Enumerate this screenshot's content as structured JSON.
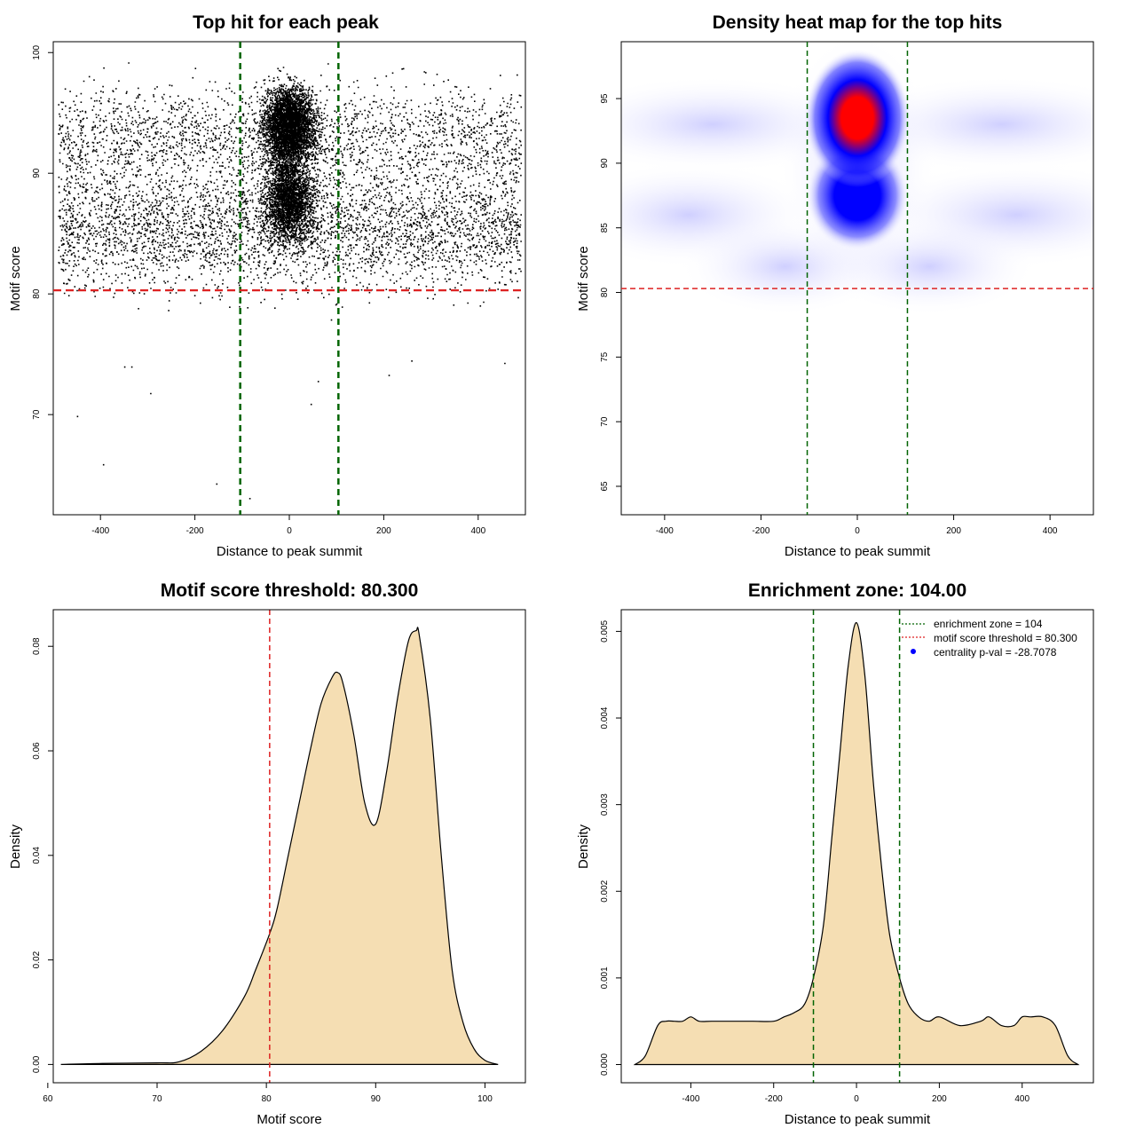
{
  "chart_data": [
    {
      "type": "scatter",
      "title": "Top hit for each peak",
      "xlabel": "Distance to peak summit",
      "ylabel": "Motif score",
      "xlim": [
        -500,
        500
      ],
      "ylim": [
        62,
        100
      ],
      "xticks": [
        "-400",
        "-200",
        "0",
        "200",
        "400"
      ],
      "yticks": [
        "70",
        "80",
        "90",
        "100"
      ],
      "threshold_y": 80.3,
      "zone_x": [
        -104,
        104
      ],
      "threshold_color": "#dd2222",
      "zone_color": "#006400",
      "point_color": "#000000",
      "background_population": {
        "x_range": [
          -490,
          490
        ],
        "centers_y": [
          85.5,
          93
        ],
        "sd_y": [
          3.2,
          3.0
        ]
      },
      "central_population": {
        "x_center": 0,
        "x_sd": 35,
        "centers_y": [
          94,
          88
        ],
        "sd_y": [
          2.0,
          2.3
        ]
      },
      "outliers": [
        {
          "x": -450,
          "y": 69.9
        },
        {
          "x": -395,
          "y": 65.9
        },
        {
          "x": -155,
          "y": 64.3
        },
        {
          "x": -85,
          "y": 63.1
        },
        {
          "x": -295,
          "y": 71.8
        },
        {
          "x": 45,
          "y": 70.9
        },
        {
          "x": -350,
          "y": 74.0
        },
        {
          "x": -335,
          "y": 74.0
        },
        {
          "x": 60,
          "y": 72.8
        },
        {
          "x": 210,
          "y": 73.3
        },
        {
          "x": 258,
          "y": 74.5
        },
        {
          "x": 455,
          "y": 74.3
        }
      ]
    },
    {
      "type": "heatmap",
      "title": "Density heat map for the top hits",
      "xlabel": "Distance to peak summit",
      "ylabel": "Motif score",
      "xlim": [
        -490,
        490
      ],
      "ylim": [
        63,
        99
      ],
      "xticks": [
        "-400",
        "-200",
        "0",
        "200",
        "400"
      ],
      "yticks": [
        "65",
        "70",
        "75",
        "80",
        "85",
        "90",
        "95"
      ],
      "threshold_y": 80.3,
      "zone_x": [
        -104,
        104
      ],
      "threshold_color": "#dd2222",
      "zone_color": "#006400",
      "colormap": [
        "#ffffff",
        "#0000ff",
        "#ff0000"
      ],
      "hotspots": [
        {
          "x": 0,
          "y": 93.5,
          "intensity": "high"
        },
        {
          "x": 0,
          "y": 87.5,
          "intensity": "medium"
        }
      ]
    },
    {
      "type": "area",
      "title": "Motif score threshold: 80.300",
      "xlabel": "Motif score",
      "ylabel": "Density",
      "xlim": [
        60,
        101.5
      ],
      "ylim": [
        0,
        0.085
      ],
      "xticks": [
        "60",
        "70",
        "80",
        "90",
        "100"
      ],
      "yticks": [
        "0.00",
        "0.02",
        "0.04",
        "0.06",
        "0.08"
      ],
      "threshold_x": 80.3,
      "threshold_color": "#dd2222",
      "fill_color": "#f5deb3",
      "x": [
        61.2,
        65,
        70,
        72,
        74,
        76,
        78,
        79,
        80.3,
        81,
        82,
        83,
        84,
        85,
        86,
        86.5,
        87,
        88,
        89,
        90,
        91,
        92,
        93,
        93.7,
        94,
        95,
        96,
        97,
        98,
        99,
        100,
        101.2
      ],
      "y": [
        0,
        0.0002,
        0.0003,
        0.0005,
        0.0025,
        0.0065,
        0.013,
        0.018,
        0.025,
        0.03,
        0.04,
        0.05,
        0.06,
        0.069,
        0.074,
        0.075,
        0.073,
        0.063,
        0.05,
        0.046,
        0.056,
        0.07,
        0.081,
        0.083,
        0.082,
        0.066,
        0.04,
        0.018,
        0.008,
        0.003,
        0.0008,
        0
      ]
    },
    {
      "type": "area",
      "title": "Enrichment zone: 104.00",
      "xlabel": "Distance to peak summit",
      "ylabel": "Density",
      "xlim": [
        -550,
        550
      ],
      "ylim": [
        0,
        0.0051
      ],
      "xticks": [
        "-400",
        "-200",
        "0",
        "200",
        "400"
      ],
      "yticks": [
        "0.000",
        "0.001",
        "0.002",
        "0.003",
        "0.004",
        "0.005"
      ],
      "zone_x": [
        -104,
        104
      ],
      "zone_color": "#006400",
      "fill_color": "#f5deb3",
      "legend_position": "top-right",
      "legend": [
        {
          "label": "enrichment zone = 104",
          "symbol": "line",
          "color": "#006400"
        },
        {
          "label": "motif score threshold = 80.300",
          "symbol": "line",
          "color": "#dd2222"
        },
        {
          "label": "centrality p-val = -28.7078",
          "symbol": "dot",
          "color": "#0000ff"
        }
      ],
      "x": [
        -535,
        -510,
        -480,
        -460,
        -440,
        -420,
        -400,
        -380,
        -350,
        -300,
        -250,
        -200,
        -175,
        -150,
        -125,
        -104,
        -80,
        -60,
        -40,
        -20,
        0,
        20,
        40,
        60,
        80,
        104,
        125,
        150,
        175,
        200,
        250,
        300,
        320,
        350,
        380,
        400,
        420,
        450,
        480,
        510,
        535
      ],
      "y": [
        0,
        0.0001,
        0.00045,
        0.0005,
        0.0005,
        0.0005,
        0.00055,
        0.0005,
        0.0005,
        0.0005,
        0.0005,
        0.0005,
        0.00055,
        0.0006,
        0.0007,
        0.001,
        0.0016,
        0.0026,
        0.0036,
        0.0046,
        0.0051,
        0.0045,
        0.0033,
        0.0023,
        0.0015,
        0.001,
        0.0007,
        0.00055,
        0.0005,
        0.00055,
        0.00045,
        0.0005,
        0.00055,
        0.00045,
        0.00045,
        0.00055,
        0.00055,
        0.00055,
        0.00045,
        0.0001,
        0
      ]
    }
  ]
}
